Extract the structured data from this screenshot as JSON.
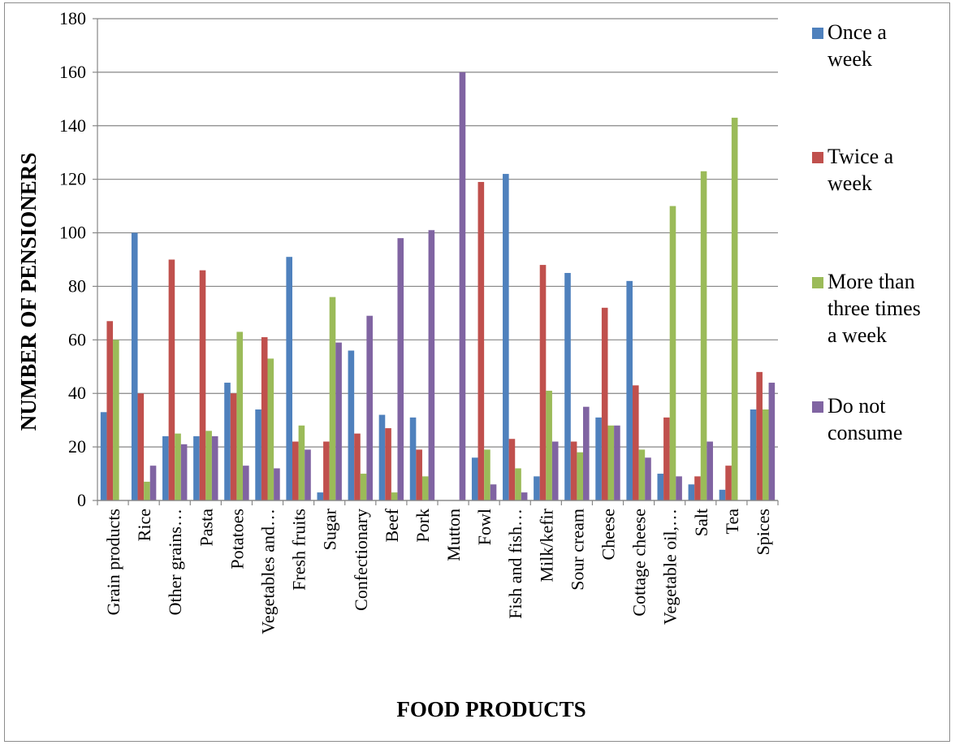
{
  "chart_data": {
    "type": "bar",
    "title": "",
    "xlabel": "FOOD PRODUCTS",
    "ylabel": "NUMBER OF PENSIONERS",
    "ylim": [
      0,
      180
    ],
    "ytick_step": 20,
    "grid": true,
    "legend_position": "right",
    "categories": [
      "Grain products",
      "Rice",
      "Other grains…",
      "Pasta",
      "Potatoes",
      "Vegetables and…",
      "Fresh fruits",
      "Sugar",
      "Confectionary",
      "Beef",
      "Pork",
      "Mutton",
      "Fowl",
      "Fish and fish…",
      "Milk/kefir",
      "Sour cream",
      "Cheese",
      "Cottage cheese",
      "Vegetable oil,…",
      "Salt",
      "Tea",
      "Spices"
    ],
    "series": [
      {
        "name": "Once a week",
        "legend_lines": [
          "Once a",
          "week"
        ],
        "color": "#4f81bd",
        "values": [
          33,
          100,
          24,
          24,
          44,
          34,
          91,
          3,
          56,
          32,
          31,
          0,
          16,
          122,
          9,
          85,
          31,
          82,
          10,
          6,
          4,
          34
        ]
      },
      {
        "name": "Twice a week",
        "legend_lines": [
          "Twice a",
          "week"
        ],
        "color": "#c0504d",
        "values": [
          67,
          40,
          90,
          86,
          40,
          61,
          22,
          22,
          25,
          27,
          19,
          0,
          119,
          23,
          88,
          22,
          72,
          43,
          31,
          9,
          13,
          48
        ]
      },
      {
        "name": "More than three times a week",
        "legend_lines": [
          "More than",
          "three times",
          "a week"
        ],
        "color": "#9bbb59",
        "values": [
          60,
          7,
          25,
          26,
          63,
          53,
          28,
          76,
          10,
          3,
          9,
          0,
          19,
          12,
          41,
          18,
          28,
          19,
          110,
          123,
          143,
          34
        ]
      },
      {
        "name": "Do not consume",
        "legend_lines": [
          "Do not",
          "consume"
        ],
        "color": "#8064a2",
        "values": [
          0,
          13,
          21,
          24,
          13,
          12,
          19,
          59,
          69,
          98,
          101,
          160,
          6,
          3,
          22,
          35,
          28,
          16,
          9,
          22,
          0,
          44
        ]
      }
    ]
  }
}
